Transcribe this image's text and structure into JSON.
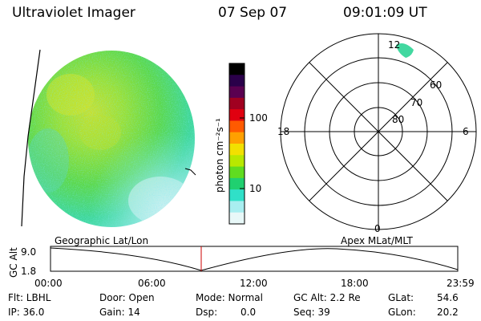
{
  "header": {
    "title": "Ultraviolet Imager",
    "date": "07 Sep 07",
    "time": "09:01:09 UT"
  },
  "colorbar": {
    "ticks": [
      "100",
      "10"
    ],
    "unit_label": "photon cm⁻²s⁻¹",
    "colors": [
      "#000000",
      "#2a004a",
      "#5a0050",
      "#a00020",
      "#e00010",
      "#ff5a00",
      "#ffa000",
      "#f2e000",
      "#b8e800",
      "#60dc20",
      "#20d070",
      "#30e0c8",
      "#a8eef0",
      "#e8f8f8"
    ]
  },
  "polar_plot": {
    "mlt_labels": {
      "top": "12",
      "left": "18",
      "right": "6",
      "bottom": "0"
    },
    "lat_labels": [
      "60",
      "70",
      "80"
    ]
  },
  "timeline": {
    "left_title": "Geographic Lat/Lon",
    "right_title": "Apex MLat/MLT",
    "axis_label": "GC Alt",
    "y_ticks": [
      "9.0",
      "1.8"
    ],
    "x_ticks": [
      "00:00",
      "06:00",
      "12:00",
      "18:00",
      "23:59"
    ],
    "current_marker_color": "#cc0000"
  },
  "status": {
    "flt": "Flt: LBHL",
    "ip": "IP: 36.0",
    "door": "Door: Open",
    "gain": "Gain: 14",
    "mode": "Mode: Normal",
    "dsp": "Dsp:",
    "dsp_value": "0.0",
    "gc_alt": "GC Alt: 2.2 Re",
    "seq": "Seq: 39",
    "glat": "GLat:",
    "glat_value": "54.6",
    "glon": "GLon:",
    "glon_value": "20.2"
  }
}
